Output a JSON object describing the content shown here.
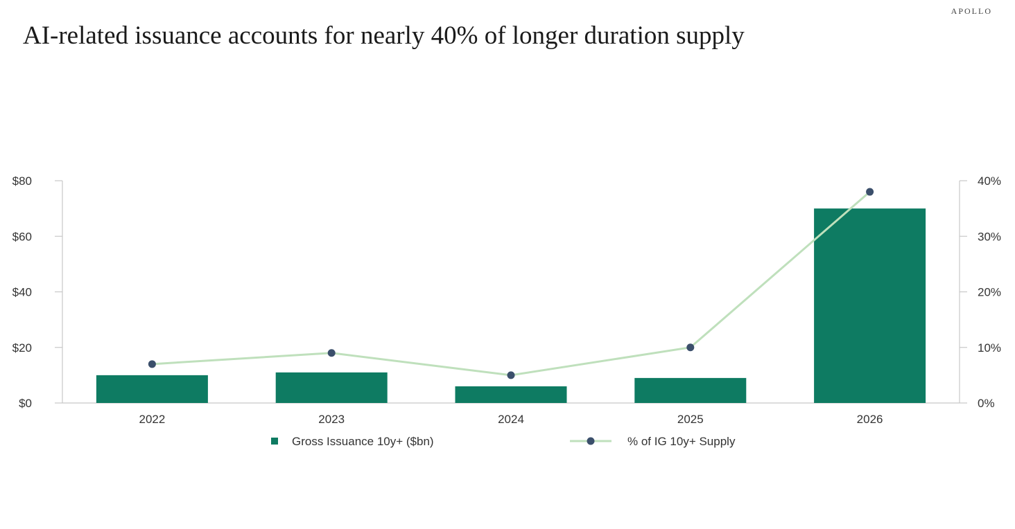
{
  "brand": "APOLLO",
  "title": "AI-related issuance accounts for nearly 40% of longer duration supply",
  "chart_data": {
    "type": "bar",
    "categories": [
      "2022",
      "2023",
      "2024",
      "2025",
      "2026"
    ],
    "series": [
      {
        "name": "Gross Issuance 10y+ ($bn)",
        "type": "bar",
        "axis": "left",
        "values": [
          10,
          11,
          6,
          9,
          70
        ],
        "color": "#0e7b62"
      },
      {
        "name": "% of IG 10y+ Supply",
        "type": "line",
        "axis": "right",
        "values": [
          7,
          9,
          5,
          10,
          38
        ],
        "line_color": "#bfe0bc",
        "marker_color": "#3b4f6b"
      }
    ],
    "y_left": {
      "ylim": [
        0,
        80
      ],
      "ticks": [
        0,
        20,
        40,
        60,
        80
      ],
      "tick_labels": [
        "$0",
        "$20",
        "$40",
        "$60",
        "$80"
      ]
    },
    "y_right": {
      "ylim": [
        0,
        40
      ],
      "ticks": [
        0,
        10,
        20,
        30,
        40
      ],
      "tick_labels": [
        "0%",
        "10%",
        "20%",
        "30%",
        "40%"
      ]
    },
    "grid": false,
    "legend_position": "bottom"
  }
}
